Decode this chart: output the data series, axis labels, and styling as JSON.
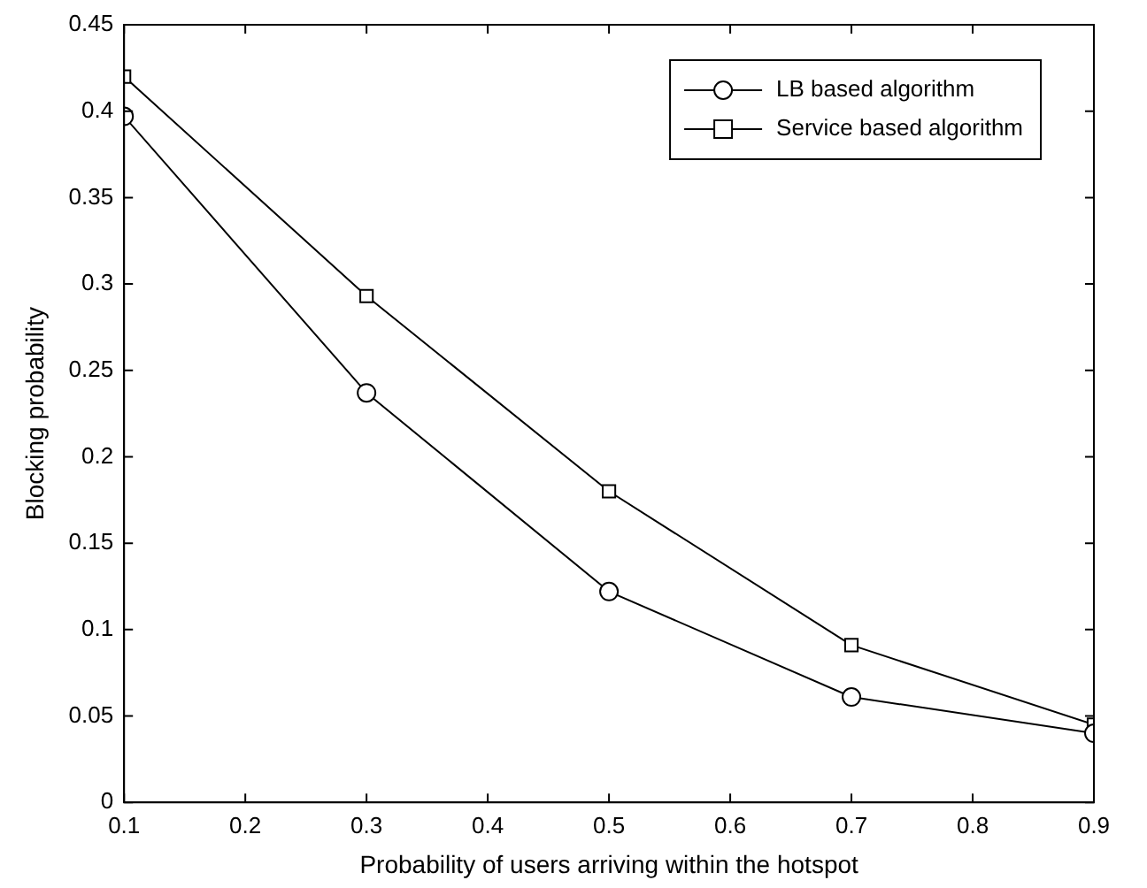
{
  "chart_data": {
    "type": "line",
    "xlabel": "Probability of users arriving within the hotspot",
    "ylabel": "Blocking probability",
    "x": [
      0.1,
      0.3,
      0.5,
      0.7,
      0.9
    ],
    "series": [
      {
        "name": "LB based algorithm",
        "color": "#000000",
        "marker": "circle",
        "values": [
          0.397,
          0.237,
          0.122,
          0.061,
          0.04
        ]
      },
      {
        "name": "Service based algorithm",
        "color": "#000000",
        "marker": "square",
        "values": [
          0.42,
          0.293,
          0.18,
          0.091,
          0.045
        ]
      }
    ],
    "xlim": [
      0.1,
      0.9
    ],
    "xticks": [
      0.1,
      0.2,
      0.3,
      0.4,
      0.5,
      0.6,
      0.7,
      0.8,
      0.9
    ],
    "ylim": [
      0,
      0.45
    ],
    "yticks": [
      0,
      0.05,
      0.1,
      0.15,
      0.2,
      0.25,
      0.3,
      0.35,
      0.4,
      0.45
    ],
    "grid": false,
    "legend": "top right",
    "line_style": "solid"
  }
}
